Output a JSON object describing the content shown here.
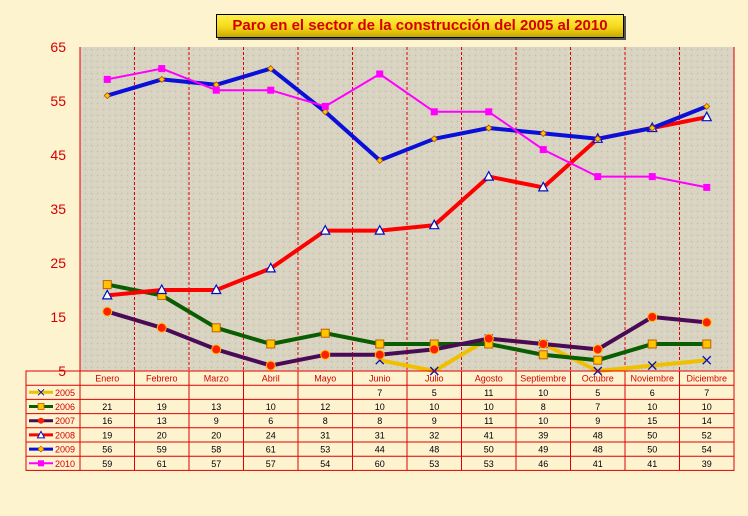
{
  "chart_data": {
    "type": "line",
    "title": "Paro en el sector de la construcción del 2005 al 2010",
    "categories": [
      "Enero",
      "Febrero",
      "Marzo",
      "Abril",
      "Mayo",
      "Junio",
      "Julio",
      "Agosto",
      "Septiembre",
      "Octubre",
      "Noviembre",
      "Diciembre"
    ],
    "ylim": [
      5,
      65
    ],
    "yticks": [
      5,
      15,
      25,
      35,
      45,
      55,
      65
    ],
    "grid": "vertical dashed red lines per month",
    "legend": "data table below plot",
    "series": [
      {
        "name": "2005",
        "color": "#f0c000",
        "marker": "x",
        "values": [
          null,
          null,
          null,
          null,
          null,
          7,
          5,
          11,
          10,
          5,
          6,
          7
        ]
      },
      {
        "name": "2006",
        "color": "#0a5d00",
        "marker": "square",
        "values": [
          21,
          19,
          13,
          10,
          12,
          10,
          10,
          10,
          8,
          7,
          10,
          10
        ]
      },
      {
        "name": "2007",
        "color": "#4a0a55",
        "marker": "circle",
        "values": [
          16,
          13,
          9,
          6,
          8,
          8,
          9,
          11,
          10,
          9,
          15,
          14
        ]
      },
      {
        "name": "2008",
        "color": "#ff0000",
        "marker": "triangle",
        "values": [
          19,
          20,
          20,
          24,
          31,
          31,
          32,
          41,
          39,
          48,
          50,
          52
        ]
      },
      {
        "name": "2009",
        "color": "#0a10d8",
        "marker": "diamond",
        "values": [
          56,
          59,
          58,
          61,
          53,
          44,
          48,
          50,
          49,
          48,
          50,
          54
        ]
      },
      {
        "name": "2010",
        "color": "#ff00ff",
        "marker": "square",
        "values": [
          59,
          61,
          57,
          57,
          54,
          60,
          53,
          53,
          46,
          41,
          41,
          39
        ]
      }
    ]
  }
}
